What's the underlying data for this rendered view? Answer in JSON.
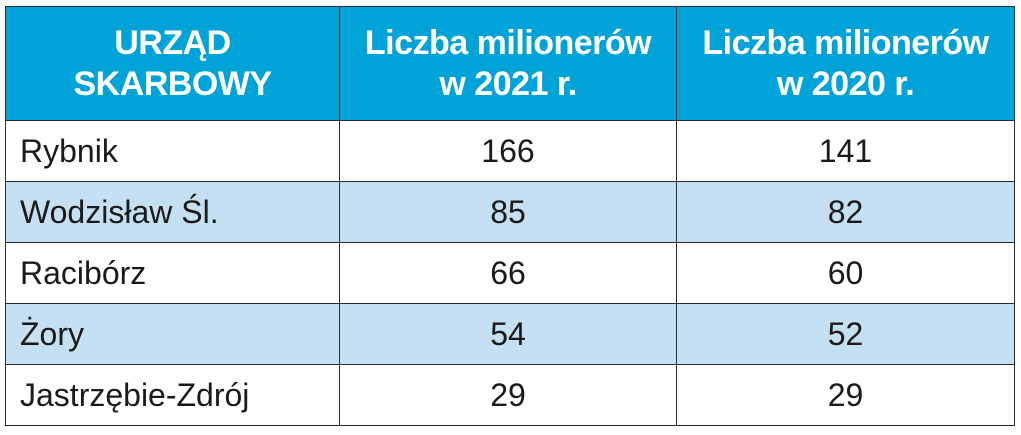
{
  "table": {
    "headers": [
      {
        "line1": "URZĄD",
        "line2": "SKARBOWY"
      },
      {
        "line1": "Liczba milionerów",
        "line2": "w 2021 r."
      },
      {
        "line1": "Liczba milionerów",
        "line2": "w 2020 r."
      }
    ],
    "rows": [
      {
        "office": "Rybnik",
        "y2021": "166",
        "y2020": "141"
      },
      {
        "office": "Wodzisław Śl.",
        "y2021": "85",
        "y2020": "82"
      },
      {
        "office": "Racibórz",
        "y2021": "66",
        "y2020": "60"
      },
      {
        "office": "Żory",
        "y2021": "54",
        "y2020": "52"
      },
      {
        "office": "Jastrzębie-Zdrój",
        "y2021": "29",
        "y2020": "29"
      }
    ]
  },
  "colors": {
    "header_bg": "#00a3d7",
    "header_text": "#ffffff",
    "alt_row_bg": "#c5e0f2",
    "plain_row_bg": "#ffffff",
    "border": "#2b2b2b"
  }
}
